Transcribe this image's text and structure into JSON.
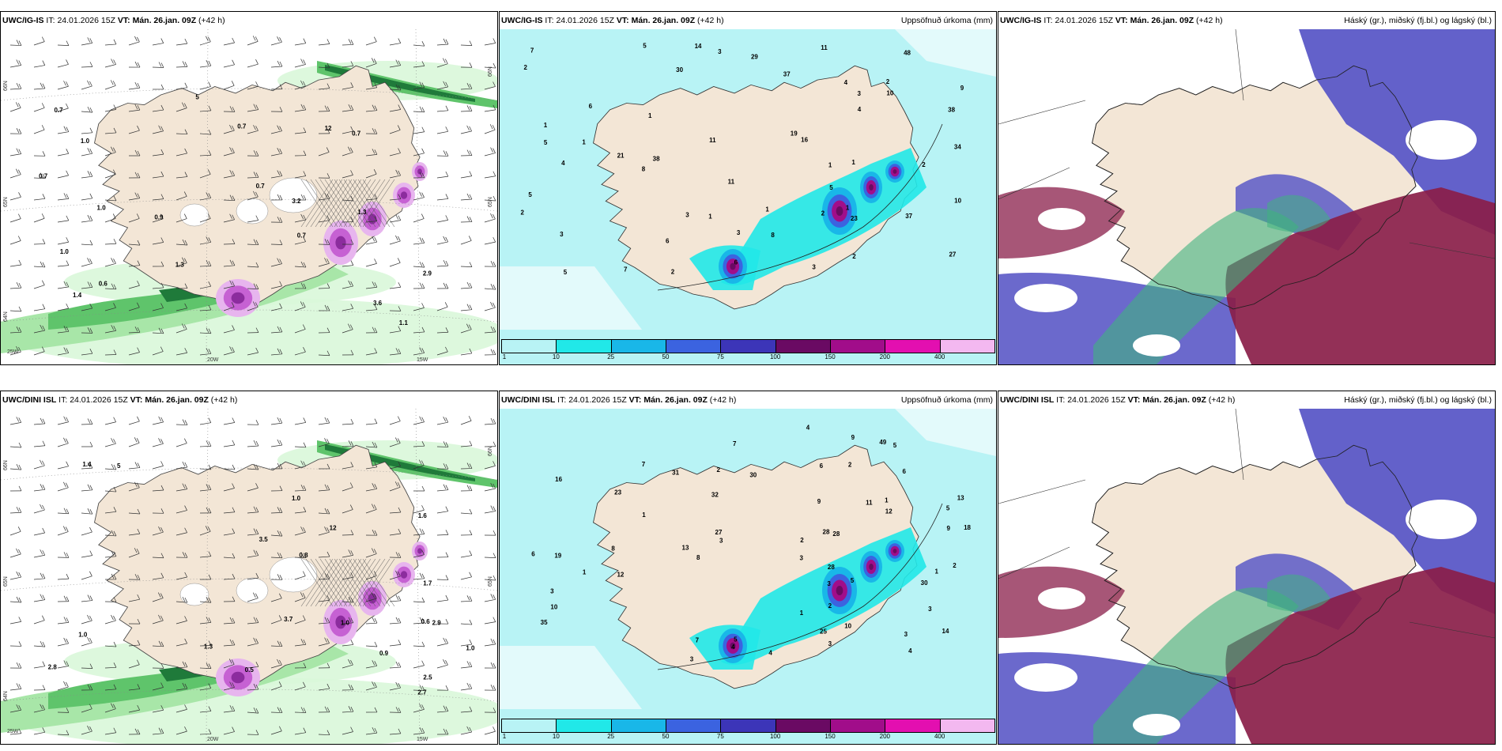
{
  "common": {
    "it_label": "IT:",
    "it_value": "24.01.2026 15Z",
    "vt_label": "VT:",
    "vt_value": "Mán. 26.jan. 09Z",
    "lead": "(+42 h)"
  },
  "rows": [
    {
      "model": "UWC/IG-IS",
      "panels": {
        "wind": {
          "labels": [
            "1.1",
            "1.0",
            "0.7",
            "0.7",
            "2.9",
            "1.0",
            "0.6",
            "0.9",
            "0.7",
            "0.7",
            "12",
            "3.6",
            "1.3",
            "5",
            "3.2",
            "1.0",
            "1.3",
            "0.7",
            "0.7",
            "1.4"
          ],
          "axes": [
            "66N",
            "65N",
            "64N",
            "25W",
            "20W",
            "15W",
            "66N",
            "65N"
          ]
        },
        "precip": {
          "title_right": "Uppsöfnuð úrkoma (mm)",
          "labels": [
            "4",
            "3",
            "3",
            "6",
            "1",
            "1",
            "3",
            "1",
            "3",
            "2",
            "16",
            "37",
            "4",
            "2",
            "1",
            "1",
            "2",
            "3",
            "7",
            "1",
            "2",
            "10",
            "34",
            "30",
            "8",
            "37",
            "11",
            "3",
            "2",
            "2",
            "23",
            "38",
            "6",
            "9",
            "10",
            "4",
            "11",
            "11",
            "19",
            "1",
            "48",
            "21",
            "38",
            "5",
            "27",
            "14",
            "29",
            "5",
            "5",
            "2",
            "7",
            "1",
            "6",
            "5",
            "8",
            "5"
          ]
        },
        "cloud": {
          "title_right": "Háský (gr.), miðský (fj.bl.) og lágský (bl.)"
        }
      }
    },
    {
      "model": "UWC/DINI ISL",
      "panels": {
        "wind": {
          "labels": [
            "1.0",
            "0.8",
            "0.6",
            "1.0",
            "1.0",
            "0.9",
            "3.5",
            "12",
            "2.9",
            "2.8",
            "5",
            "3.7",
            "1.7",
            "0.5",
            "1.4",
            "1.3",
            "2.7",
            "1.6",
            "2.5",
            "1.0"
          ],
          "axes": [
            "66N",
            "65N",
            "64N",
            "25W",
            "20W",
            "15W",
            "66N",
            "65N"
          ]
        },
        "precip": {
          "title_right": "Uppsöfnuð úrkoma (mm)",
          "labels": [
            "4",
            "3",
            "3",
            "2",
            "3",
            "5",
            "5",
            "5",
            "1",
            "3",
            "18",
            "3",
            "3",
            "1",
            "11",
            "30",
            "1",
            "2",
            "1",
            "32",
            "3",
            "10",
            "28",
            "2",
            "2",
            "28",
            "12",
            "3",
            "49",
            "6",
            "9",
            "31",
            "8",
            "9",
            "9",
            "4",
            "12",
            "10",
            "16",
            "6",
            "14",
            "19",
            "6",
            "4",
            "13",
            "2",
            "1",
            "35",
            "30",
            "27",
            "28",
            "25",
            "13",
            "8",
            "7",
            "7",
            "5",
            "7",
            "4",
            "23"
          ]
        },
        "cloud": {
          "title_right": "Háský (gr.), miðský (fj.bl.) og lágský (bl.)"
        }
      }
    }
  ],
  "colorbar": {
    "ticks": [
      "1",
      "10",
      "25",
      "50",
      "75",
      "100",
      "150",
      "200",
      "400"
    ],
    "colors": [
      "#b8f3f5",
      "#21e8e8",
      "#19b7e8",
      "#3b63e0",
      "#3c35b8",
      "#6a0a63",
      "#a10d8a",
      "#e30fb0",
      "#f3b8f0"
    ]
  },
  "colors": {
    "land": "#f3e6d6",
    "precip_sea": "#b8f3f5",
    "cloud_high": "#5b59c7",
    "cloud_mid": "#8a1e49",
    "cloud_low": "#3fb27f"
  }
}
